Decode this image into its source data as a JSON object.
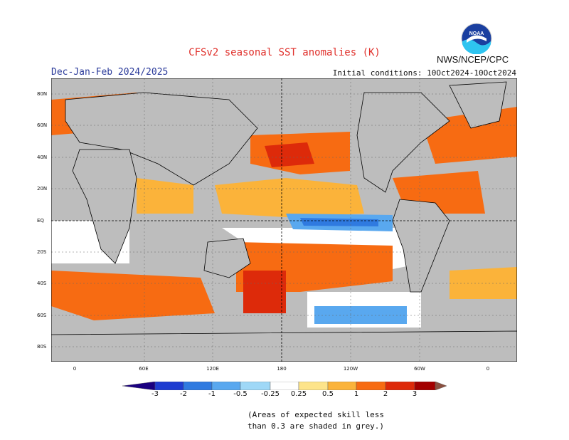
{
  "header": {
    "title": "CFSv2 seasonal SST anomalies (K)",
    "agency": "NWS/NCEP/CPC",
    "logo_text": "NOAA",
    "season": "Dec-Jan-Feb 2024/2025",
    "initial_conditions": "Initial conditions: 10Oct2024-10Oct2024"
  },
  "axes": {
    "lat_labels": [
      "80N",
      "60N",
      "40N",
      "20N",
      "EQ",
      "20S",
      "40S",
      "60S",
      "80S"
    ],
    "lon_labels": [
      "0",
      "60E",
      "120E",
      "180",
      "120W",
      "60W",
      "0"
    ]
  },
  "colorbar": {
    "labels": [
      "-3",
      "-2",
      "-1",
      "-0.5",
      "-0.25",
      "0.25",
      "0.5",
      "1",
      "2",
      "3"
    ],
    "colors": [
      "#1a0080",
      "#1e3cd0",
      "#2f7ae0",
      "#59a8ef",
      "#9fd8f7",
      "#ffffff",
      "#fde48a",
      "#fbb33a",
      "#f76b12",
      "#dd2a0a",
      "#a30000",
      "#8a5040"
    ]
  },
  "legend_note": {
    "line1": "(Areas of expected skill less",
    "line2": "than 0.3 are shaded in grey.)"
  }
}
